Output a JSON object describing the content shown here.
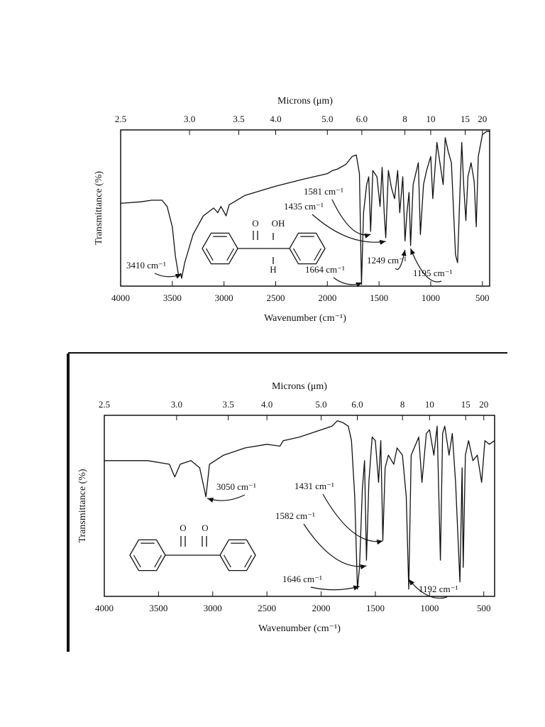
{
  "chart_data": [
    {
      "type": "line",
      "x2label": "Microns (μm)",
      "xlabel": "Wavenumber (cm⁻¹)",
      "ylabel": "Transmittance (%)",
      "xlim": [
        4000,
        430
      ],
      "ylim": [
        0,
        100
      ],
      "xticks": [
        4000,
        3500,
        3000,
        2500,
        2000,
        1500,
        1000,
        500
      ],
      "x2ticks": [
        2.5,
        {
          "value": 3,
          "label": "3.0"
        },
        3.5,
        {
          "value": 4,
          "label": "4.0"
        },
        {
          "value": 5,
          "label": "5.0"
        },
        {
          "value": 6,
          "label": "6.0"
        },
        8,
        10,
        15,
        20
      ],
      "color": "#111111",
      "x": [
        4000,
        3800,
        3700,
        3600,
        3550,
        3500,
        3470,
        3440,
        3420,
        3410,
        3380,
        3300,
        3200,
        3100,
        3060,
        3030,
        2980,
        2950,
        2800,
        2500,
        2200,
        2000,
        1950,
        1900,
        1820,
        1760,
        1720,
        1690,
        1670,
        1650,
        1620,
        1600,
        1581,
        1560,
        1520,
        1490,
        1470,
        1450,
        1435,
        1410,
        1380,
        1350,
        1320,
        1300,
        1270,
        1249,
        1230,
        1210,
        1195,
        1170,
        1120,
        1100,
        1070,
        1040,
        1000,
        980,
        940,
        920,
        880,
        860,
        830,
        800,
        760,
        740,
        720,
        700,
        680,
        660,
        640,
        610,
        580,
        560,
        540,
        500,
        460,
        430
      ],
      "values": [
        53,
        54,
        55,
        55,
        51,
        38,
        19,
        7,
        8,
        5,
        15,
        33,
        45,
        50,
        47,
        51,
        45,
        52,
        58,
        64,
        69,
        72,
        74,
        75,
        78,
        83,
        84,
        72,
        1,
        47,
        65,
        70,
        35,
        74,
        70,
        51,
        76,
        47,
        31,
        74,
        63,
        56,
        74,
        47,
        70,
        29,
        47,
        60,
        26,
        65,
        79,
        33,
        65,
        74,
        83,
        56,
        92,
        83,
        65,
        95,
        86,
        79,
        20,
        15,
        56,
        92,
        63,
        42,
        70,
        79,
        67,
        38,
        83,
        97,
        99,
        99
      ],
      "annotations": [
        {
          "x": 3410,
          "label": "3410 cm⁻¹"
        },
        {
          "x": 1581,
          "label": "1581 cm⁻¹"
        },
        {
          "x": 1435,
          "label": "1435 cm⁻¹"
        },
        {
          "x": 1664,
          "label": "1664 cm⁻¹"
        },
        {
          "x": 1249,
          "label": "1249 cm⁻¹"
        },
        {
          "x": 1195,
          "label": "1195 cm⁻¹"
        }
      ],
      "structure_labels": [
        "O",
        "OH",
        "H"
      ]
    },
    {
      "type": "line",
      "x2label": "Microns (μm)",
      "xlabel": "Wavenumber (cm⁻¹)",
      "ylabel": "Transmittance (%)",
      "xlim": [
        4000,
        400
      ],
      "ylim": [
        0,
        100
      ],
      "xticks": [
        4000,
        3500,
        3000,
        2500,
        2000,
        1500,
        1000,
        500
      ],
      "x2ticks": [
        2.5,
        {
          "value": 3,
          "label": "3.0"
        },
        3.5,
        {
          "value": 4,
          "label": "4.0"
        },
        {
          "value": 5,
          "label": "5.0"
        },
        {
          "value": 6,
          "label": "6.0"
        },
        8,
        10,
        15,
        20
      ],
      "color": "#111111",
      "x": [
        4000,
        3800,
        3600,
        3400,
        3350,
        3300,
        3200,
        3120,
        3063,
        3030,
        2900,
        2700,
        2500,
        2380,
        2350,
        2200,
        2000,
        1900,
        1850,
        1800,
        1750,
        1720,
        1690,
        1665,
        1646,
        1620,
        1600,
        1582,
        1560,
        1530,
        1500,
        1470,
        1450,
        1431,
        1410,
        1380,
        1330,
        1300,
        1250,
        1215,
        1192,
        1170,
        1100,
        1070,
        1030,
        1000,
        960,
        930,
        900,
        880,
        860,
        820,
        790,
        760,
        720,
        700,
        690,
        670,
        640,
        600,
        560,
        520,
        490,
        450,
        400
      ],
      "values": [
        75,
        75,
        75,
        73,
        66,
        73,
        75,
        71,
        55,
        73,
        78,
        82,
        84,
        83,
        86,
        88,
        92,
        94,
        97,
        96,
        94,
        86,
        55,
        4,
        16,
        59,
        75,
        20,
        63,
        88,
        86,
        63,
        86,
        31,
        71,
        78,
        73,
        82,
        78,
        55,
        4,
        78,
        88,
        63,
        90,
        92,
        78,
        94,
        20,
        90,
        94,
        78,
        90,
        63,
        8,
        71,
        16,
        78,
        86,
        75,
        78,
        63,
        86,
        84,
        86
      ],
      "annotations": [
        {
          "x": 3050,
          "label": "3050 cm⁻¹"
        },
        {
          "x": 1431,
          "label": "1431 cm⁻¹"
        },
        {
          "x": 1582,
          "label": "1582 cm⁻¹"
        },
        {
          "x": 1646,
          "label": "1646 cm⁻¹"
        },
        {
          "x": 1192,
          "label": "1192 cm⁻¹"
        }
      ],
      "structure_labels": [
        "O",
        "O"
      ]
    }
  ]
}
